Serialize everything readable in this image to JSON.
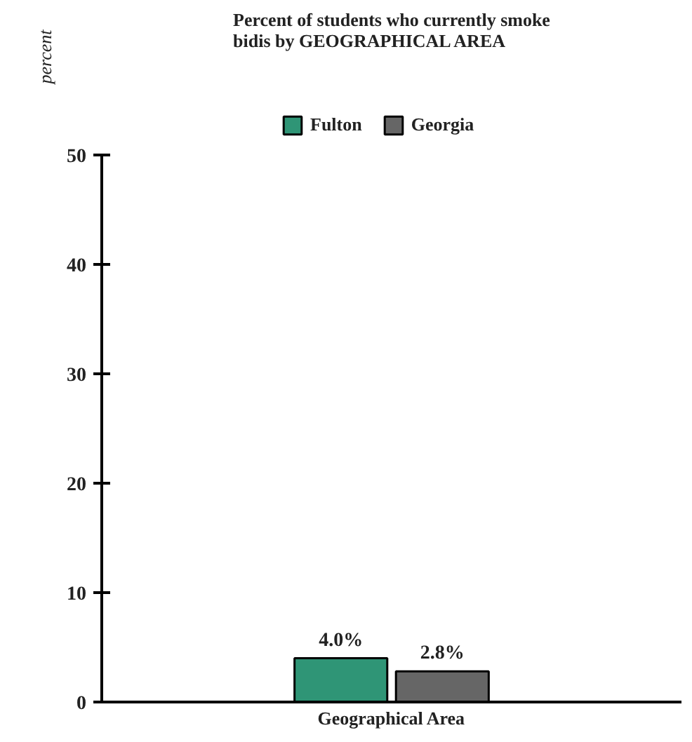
{
  "chart_data": {
    "type": "bar",
    "title": "Percent of students who currently smoke bidis by GEOGRAPHICAL AREA",
    "xlabel": "Geographical Area",
    "ylabel": "percent",
    "categories": [
      null
    ],
    "series": [
      {
        "name": "Fulton",
        "color": "#2f9576",
        "values": [
          4.0
        ],
        "value_labels": [
          "4.0%"
        ]
      },
      {
        "name": "Georgia",
        "color": "#666666",
        "values": [
          2.8
        ],
        "value_labels": [
          "2.8%"
        ]
      }
    ],
    "ylim": [
      0,
      50
    ],
    "yticks": [
      0,
      10,
      20,
      30,
      40,
      50
    ],
    "legend": "top",
    "tick_labels": "y"
  }
}
